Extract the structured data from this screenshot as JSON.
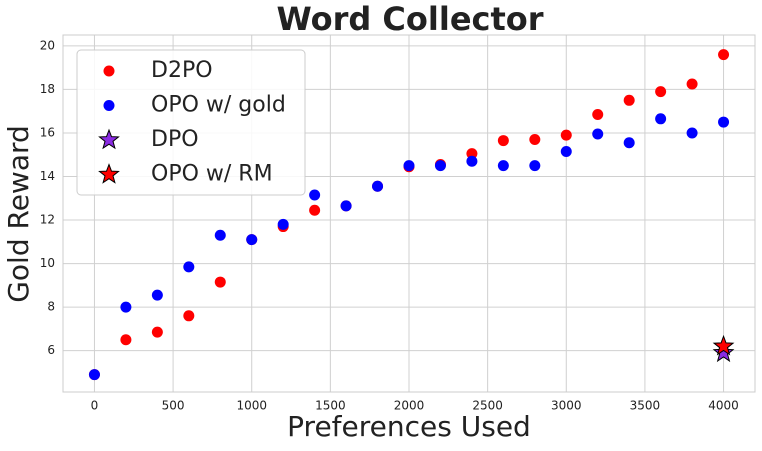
{
  "chart_data": {
    "type": "scatter",
    "title": "Word Collector",
    "x_label": "Preferences Used",
    "y_label": "Gold Reward",
    "xlim": [
      -200,
      4200
    ],
    "ylim": [
      4.1,
      20.5
    ],
    "xticks": [
      0,
      500,
      1000,
      1500,
      2000,
      2500,
      3000,
      3500,
      4000
    ],
    "yticks": [
      6,
      8,
      10,
      12,
      14,
      16,
      18,
      20
    ],
    "grid": true,
    "legend": "upper-left",
    "series": [
      {
        "name": "D2PO",
        "color": "#ff0000",
        "marker": "circle",
        "x": [
          0,
          200,
          400,
          600,
          800,
          1000,
          1200,
          1400,
          1600,
          1800,
          2000,
          2200,
          2400,
          2600,
          2800,
          3000,
          3200,
          3400,
          3600,
          3800,
          4000
        ],
        "values": [
          4.9,
          6.5,
          6.85,
          7.6,
          9.15,
          11.1,
          11.7,
          12.45,
          12.65,
          13.55,
          14.45,
          14.55,
          15.05,
          15.65,
          15.7,
          15.9,
          16.85,
          17.5,
          17.9,
          18.25,
          19.6
        ]
      },
      {
        "name": "OPO w/ gold",
        "color": "#0000ff",
        "marker": "circle",
        "x": [
          0,
          200,
          400,
          600,
          800,
          1000,
          1200,
          1400,
          1600,
          1800,
          2000,
          2200,
          2400,
          2600,
          2800,
          3000,
          3200,
          3400,
          3600,
          3800,
          4000
        ],
        "values": [
          4.9,
          8.0,
          8.55,
          9.85,
          11.3,
          11.1,
          11.8,
          13.15,
          12.65,
          13.55,
          14.5,
          14.5,
          14.7,
          14.5,
          14.5,
          15.15,
          15.95,
          15.55,
          16.65,
          16.0,
          16.5
        ]
      },
      {
        "name": "DPO",
        "color": "#8a2be2",
        "marker": "star",
        "x": [
          4000
        ],
        "values": [
          5.9
        ]
      },
      {
        "name": "OPO w/ RM",
        "color": "#ff0000",
        "marker": "star",
        "x": [
          4000
        ],
        "values": [
          6.2
        ]
      }
    ]
  }
}
